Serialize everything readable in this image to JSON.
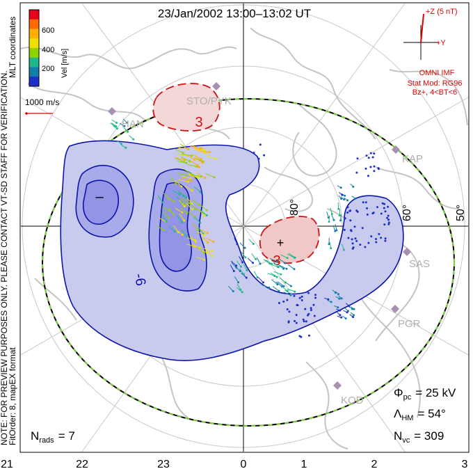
{
  "title": "23/Jan/2002  13:00–13:02 UT",
  "side_note_1": "NOTE: FOR PREVIEW PURPOSES ONLY. PLEASE CONTACT VT-SD STAFF FOR VERIFICATION.",
  "side_note_2": "FitOrder: 8,  mapEX format",
  "side_note_3": "MLT coordinates",
  "vel_scale": {
    "title": "Vel [m/s]",
    "ticks": [
      "600",
      "400",
      "200"
    ],
    "colors": [
      "#e8001a",
      "#ff6a00",
      "#ffb000",
      "#f0e000",
      "#8fd400",
      "#1fb88a",
      "#137fa8",
      "#1c2fc8"
    ]
  },
  "vector_scale_label": "1000 m/s",
  "imf": {
    "plus_z": "+Z (5 nT)",
    "plus_y": "+Y",
    "source": "OMNI IMF",
    "model_line1": "Stat Mod: RG96",
    "model_line2": "Bz+, 4<BT<6"
  },
  "radars": [
    {
      "code": "STO/PYK"
    },
    {
      "code": "HAN"
    },
    {
      "code": "KAP"
    },
    {
      "code": "SAS"
    },
    {
      "code": "PGR"
    },
    {
      "code": "KOD"
    }
  ],
  "latitudes": [
    "80°",
    "60°",
    "50°"
  ],
  "contour_labels": {
    "neg_value": "-6",
    "pos_value": "3",
    "pos_value_2": "3",
    "min_marker": "–",
    "max_marker": "+"
  },
  "stats": {
    "phi_sym": "Φ",
    "phi_sub": "pc",
    "phi_val": "= 25 kV",
    "lam_sym": "Λ",
    "lam_sub": "HM",
    "lam_val": "= 54°",
    "nvc_sym": "N",
    "nvc_sub": "vc",
    "nvc_val": "= 309",
    "nrads_sym": "N",
    "nrads_sub": "rads",
    "nrads_val": "= 7"
  },
  "mlt_axis": [
    "21",
    "22",
    "23",
    "0",
    "1",
    "2",
    "3"
  ],
  "colors": {
    "negative_cell": "#5a5ad8",
    "positive_cell": "#e86a6a",
    "contour_blue": "#0a14a8",
    "contour_red": "#d01010",
    "coast": "#c8c8c8",
    "boundary_green": "#7ccd40"
  }
}
